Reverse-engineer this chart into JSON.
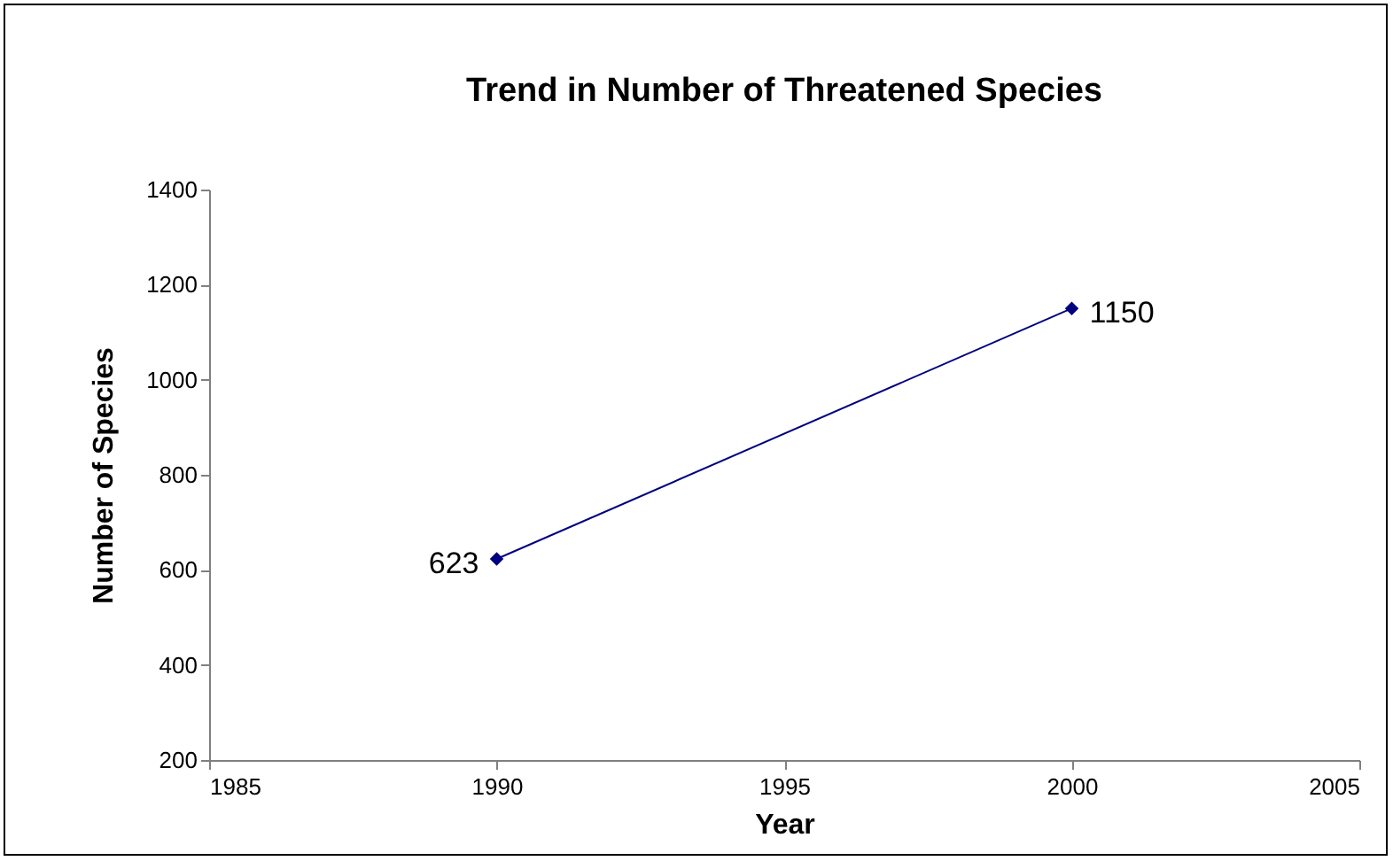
{
  "chart_data": {
    "type": "line",
    "title": "Trend in Number of Threatened Species",
    "xlabel": "Year",
    "ylabel": "Number of Species",
    "x": [
      1990,
      2000
    ],
    "series": [
      {
        "color": "#000080",
        "values": [
          623,
          1150
        ]
      }
    ],
    "xlim": [
      1985,
      2005
    ],
    "xticks": [
      1985,
      1990,
      1995,
      2000,
      2005
    ],
    "ylim": [
      200,
      1400
    ],
    "yticks": [
      200,
      400,
      600,
      800,
      {
        "value": 1000,
        "label": "1000"
      },
      {
        "value": 1200,
        "label": "1200"
      },
      {
        "value": 1400,
        "label": "1400"
      }
    ],
    "grid": false,
    "legend": false,
    "marker": "diamond",
    "line_style": "solid",
    "data_labels": true
  }
}
